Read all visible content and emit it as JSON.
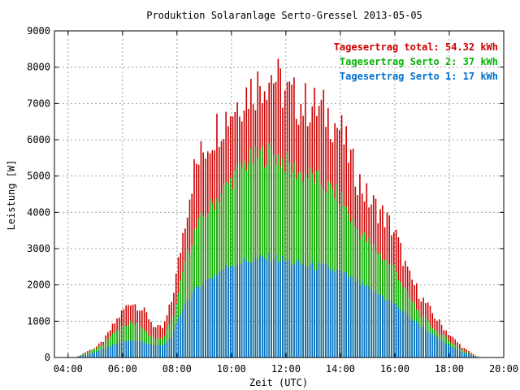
{
  "chart_data": {
    "type": "bar",
    "title": "Produktion Solaranlage Serto-Gressel 2013-05-05",
    "xlabel": "Zeit (UTC)",
    "ylabel": "Leistung [W]",
    "xlim_hours": [
      3.5,
      20.0
    ],
    "ylim": [
      0,
      9000
    ],
    "x_ticks": [
      "04:00",
      "06:00",
      "08:00",
      "10:00",
      "12:00",
      "14:00",
      "16:00",
      "18:00",
      "20:00"
    ],
    "y_ticks": [
      "0",
      "1000",
      "2000",
      "3000",
      "4000",
      "5000",
      "6000",
      "7000",
      "8000",
      "9000"
    ],
    "grid": true,
    "legend_position": "top-right",
    "legend": [
      {
        "label": "Tagesertrag total: 54.32 kWh",
        "color": "#cc0000"
      },
      {
        "label": "Tagesertrag Serto 2: 37 kWh",
        "color": "#00b400"
      },
      {
        "label": "Tagesertrag Serto 1: 17 kWh",
        "color": "#0070d0"
      }
    ],
    "colors": {
      "total": "#cc0000",
      "serto2": "#00b400",
      "serto1": "#0070d0"
    },
    "series_keypoints": {
      "total": [
        [
          4.3,
          0
        ],
        [
          4.6,
          150
        ],
        [
          5.0,
          300
        ],
        [
          5.3,
          500
        ],
        [
          5.6,
          900
        ],
        [
          6.0,
          1400
        ],
        [
          6.3,
          1700
        ],
        [
          6.6,
          1550
        ],
        [
          6.9,
          1300
        ],
        [
          7.2,
          900
        ],
        [
          7.5,
          900
        ],
        [
          7.8,
          1700
        ],
        [
          8.0,
          2600
        ],
        [
          8.3,
          4200
        ],
        [
          8.6,
          5600
        ],
        [
          9.0,
          6300
        ],
        [
          9.5,
          7000
        ],
        [
          10.0,
          7500
        ],
        [
          10.5,
          8000
        ],
        [
          11.0,
          8300
        ],
        [
          11.5,
          8600
        ],
        [
          12.0,
          8000
        ],
        [
          12.5,
          7700
        ],
        [
          13.0,
          7600
        ],
        [
          13.5,
          7400
        ],
        [
          14.0,
          6900
        ],
        [
          14.5,
          5700
        ],
        [
          15.0,
          4800
        ],
        [
          15.5,
          4400
        ],
        [
          16.0,
          3800
        ],
        [
          16.5,
          2500
        ],
        [
          17.0,
          1800
        ],
        [
          17.5,
          1200
        ],
        [
          18.0,
          700
        ],
        [
          18.5,
          300
        ],
        [
          19.0,
          40
        ],
        [
          19.2,
          0
        ]
      ],
      "serto2": [
        [
          4.3,
          0
        ],
        [
          4.6,
          120
        ],
        [
          5.0,
          250
        ],
        [
          5.3,
          400
        ],
        [
          5.6,
          650
        ],
        [
          6.0,
          900
        ],
        [
          6.3,
          1050
        ],
        [
          6.6,
          950
        ],
        [
          6.9,
          700
        ],
        [
          7.2,
          550
        ],
        [
          7.5,
          550
        ],
        [
          7.8,
          1100
        ],
        [
          8.0,
          1600
        ],
        [
          8.3,
          2800
        ],
        [
          8.6,
          3600
        ],
        [
          9.0,
          4200
        ],
        [
          9.5,
          4700
        ],
        [
          10.0,
          5200
        ],
        [
          10.5,
          5700
        ],
        [
          11.0,
          5900
        ],
        [
          11.5,
          6000
        ],
        [
          12.0,
          5700
        ],
        [
          12.5,
          5400
        ],
        [
          13.0,
          5300
        ],
        [
          13.5,
          5000
        ],
        [
          14.0,
          4700
        ],
        [
          14.5,
          3900
        ],
        [
          15.0,
          3400
        ],
        [
          15.5,
          3000
        ],
        [
          16.0,
          2600
        ],
        [
          16.5,
          1800
        ],
        [
          17.0,
          1200
        ],
        [
          17.5,
          800
        ],
        [
          18.0,
          500
        ],
        [
          18.5,
          200
        ],
        [
          19.0,
          30
        ],
        [
          19.2,
          0
        ]
      ],
      "serto1": [
        [
          4.3,
          0
        ],
        [
          4.6,
          80
        ],
        [
          5.0,
          150
        ],
        [
          5.3,
          250
        ],
        [
          5.6,
          350
        ],
        [
          6.0,
          450
        ],
        [
          6.3,
          500
        ],
        [
          6.6,
          480
        ],
        [
          6.9,
          400
        ],
        [
          7.2,
          350
        ],
        [
          7.5,
          350
        ],
        [
          7.8,
          600
        ],
        [
          8.0,
          1000
        ],
        [
          8.3,
          1600
        ],
        [
          8.6,
          1900
        ],
        [
          9.0,
          2200
        ],
        [
          9.5,
          2450
        ],
        [
          10.0,
          2700
        ],
        [
          10.5,
          2800
        ],
        [
          11.0,
          2850
        ],
        [
          11.5,
          2900
        ],
        [
          12.0,
          2800
        ],
        [
          12.5,
          2700
        ],
        [
          13.0,
          2650
        ],
        [
          13.5,
          2600
        ],
        [
          14.0,
          2450
        ],
        [
          14.5,
          2250
        ],
        [
          15.0,
          2000
        ],
        [
          15.5,
          1800
        ],
        [
          16.0,
          1550
        ],
        [
          16.5,
          1200
        ],
        [
          17.0,
          900
        ],
        [
          17.5,
          600
        ],
        [
          18.0,
          350
        ],
        [
          18.5,
          150
        ],
        [
          19.0,
          20
        ],
        [
          19.2,
          0
        ]
      ]
    },
    "bar_interval_minutes": 5
  }
}
